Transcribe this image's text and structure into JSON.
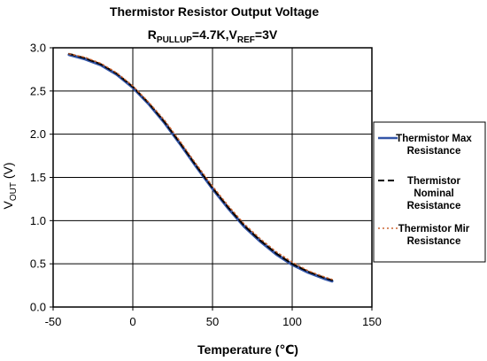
{
  "chart_data": {
    "type": "line",
    "title": "Thermistor Resistor Output Voltage",
    "subtitle": {
      "r_main": "R",
      "r_sub": "PULLUP",
      "r_val": "=4.7K,V",
      "v_sub": "REF",
      "v_val": "=3V"
    },
    "xlabel": "Temperature (℃)",
    "ylabel": {
      "main": "V",
      "sub": "OUT",
      "unit": " (V)"
    },
    "xlim": [
      -50,
      150
    ],
    "ylim": [
      0.0,
      3.0
    ],
    "xticks": [
      "-50",
      "0",
      "50",
      "100",
      "150"
    ],
    "yticks": [
      "0.0",
      "0.5",
      "1.0",
      "1.5",
      "2.0",
      "2.5",
      "3.0"
    ],
    "grid": true,
    "legend_position": "right",
    "series": [
      {
        "name": [
          "Thermistor Max",
          "Resistance"
        ],
        "color": "#3355a8",
        "style": "solid",
        "x": [
          -40,
          -30,
          -20,
          -10,
          0,
          10,
          20,
          30,
          40,
          50,
          60,
          70,
          80,
          90,
          100,
          110,
          120,
          125
        ],
        "y": [
          2.92,
          2.87,
          2.8,
          2.69,
          2.54,
          2.35,
          2.13,
          1.88,
          1.62,
          1.37,
          1.14,
          0.93,
          0.76,
          0.61,
          0.49,
          0.4,
          0.33,
          0.3
        ]
      },
      {
        "name": [
          "Thermistor",
          "Nominal",
          "Resistance"
        ],
        "color": "#000000",
        "style": "dashed",
        "x": [
          -40,
          -30,
          -20,
          -10,
          0,
          10,
          20,
          30,
          40,
          50,
          60,
          70,
          80,
          90,
          100,
          110,
          120,
          125
        ],
        "y": [
          2.93,
          2.88,
          2.81,
          2.7,
          2.55,
          2.36,
          2.14,
          1.89,
          1.63,
          1.38,
          1.15,
          0.94,
          0.77,
          0.62,
          0.5,
          0.41,
          0.34,
          0.31
        ]
      },
      {
        "name": [
          "Thermistor Mir",
          "Resistance"
        ],
        "color": "#cc6633",
        "style": "dotted",
        "x": [
          -40,
          -30,
          -20,
          -10,
          0,
          10,
          20,
          30,
          40,
          50,
          60,
          70,
          80,
          90,
          100,
          110,
          120,
          125
        ],
        "y": [
          2.93,
          2.89,
          2.82,
          2.71,
          2.56,
          2.37,
          2.16,
          1.91,
          1.65,
          1.4,
          1.17,
          0.96,
          0.79,
          0.64,
          0.52,
          0.42,
          0.35,
          0.32
        ]
      }
    ]
  }
}
